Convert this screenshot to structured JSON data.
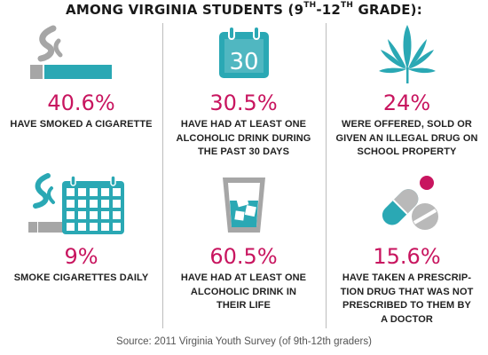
{
  "title": {
    "prefix": "AMONG VIRGINIA STUDENTS (9",
    "sup1": "TH",
    "middle": "-12",
    "sup2": "TH",
    "suffix": " GRADE):"
  },
  "stats": [
    {
      "value": "40.6%",
      "lines": [
        "HAVE SMOKED A CIGARETTE"
      ],
      "icon": "cigarette-icon"
    },
    {
      "value": "30.5%",
      "lines": [
        "HAVE HAD AT LEAST ONE",
        "ALCOHOLIC DRINK DURING",
        "THE PAST 30 DAYS"
      ],
      "icon": "calendar-30-icon",
      "icon_text": "30"
    },
    {
      "value": "24%",
      "lines": [
        "WERE OFFERED, SOLD OR",
        "GIVEN AN ILLEGAL DRUG ON",
        "SCHOOL PROPERTY"
      ],
      "icon": "marijuana-leaf-icon"
    },
    {
      "value": "9%",
      "lines": [
        "SMOKE CIGARETTES DAILY"
      ],
      "icon": "cigarette-calendar-icon"
    },
    {
      "value": "60.5%",
      "lines": [
        "HAVE HAD AT LEAST ONE",
        "ALCOHOLIC DRINK IN",
        "THEIR LIFE"
      ],
      "icon": "glass-with-ice-icon"
    },
    {
      "value": "15.6%",
      "lines": [
        "HAVE TAKEN A PRESCRIP-",
        "TION DRUG THAT WAS NOT",
        "PRESCRIBED TO THEM BY",
        "A DOCTOR"
      ],
      "icon": "pills-icon"
    }
  ],
  "source": "Source: 2011 Virginia Youth Survey (of 9th-12th graders)",
  "colors": {
    "accent_teal": "#2aa8b4",
    "stat_magenta": "#c8155f",
    "smoke_gray": "#a6a6a6",
    "pill_gray": "#b9b9b9"
  }
}
